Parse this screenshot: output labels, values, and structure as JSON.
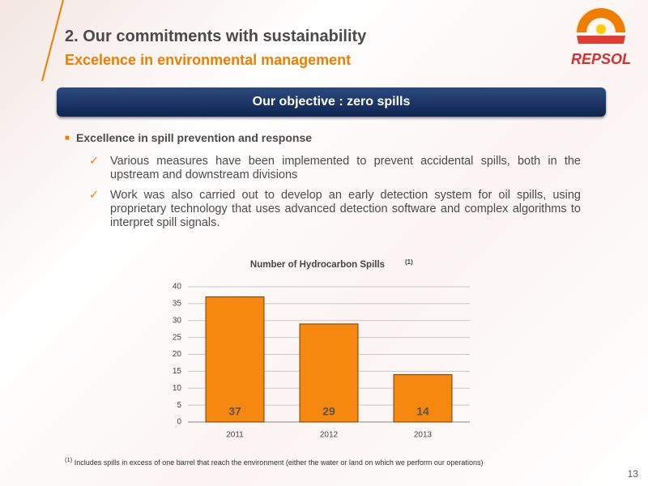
{
  "header": {
    "title": "2. Our commitments with sustainability",
    "subtitle": "Excelence in environmental management",
    "logo": "REPSOL"
  },
  "banner": "Our objective : zero spills",
  "bullet": {
    "text": "Excellence in spill prevention and response",
    "items": [
      "Various measures have been implemented to prevent accidental spills, both in the upstream and downstream divisions",
      "Work was also carried out to develop an early detection system for oil spills, using proprietary technology that uses advanced detection software and complex algorithms to interpret spill signals."
    ]
  },
  "chart_data": {
    "type": "bar",
    "title": "Number of Hydrocarbon Spills",
    "title_note": "(1)",
    "categories": [
      "2011",
      "2012",
      "2013"
    ],
    "values": [
      37,
      29,
      14
    ],
    "color": "#f7880f",
    "ylim": [
      0,
      40
    ],
    "yticks": [
      0,
      5,
      10,
      15,
      20,
      25,
      30,
      35,
      40
    ],
    "grid": true
  },
  "footnote": {
    "mark": "(1)",
    "text": "Includes spills in excess of one barrel that reach the environment (either the water or land on which we perform our operations)"
  },
  "page_number": "13"
}
